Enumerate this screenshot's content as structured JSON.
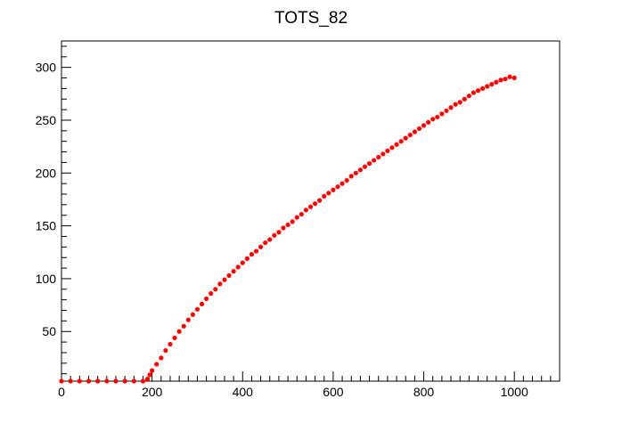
{
  "chart_data": {
    "type": "scatter",
    "title": "TOTS_82",
    "xlabel": "",
    "ylabel": "",
    "xlim": [
      0,
      1100
    ],
    "ylim": [
      3,
      325
    ],
    "x_ticks": [
      0,
      200,
      400,
      600,
      800,
      1000
    ],
    "y_ticks": [
      50,
      100,
      150,
      200,
      250,
      300
    ],
    "x_minor_step": 20,
    "y_minor_step": 10,
    "grid": false,
    "legend": "none",
    "marker_color": "#ff0000",
    "series": [
      {
        "x": [
          0,
          20,
          40,
          60,
          80,
          100,
          120,
          140,
          160,
          180,
          190,
          195,
          200,
          210,
          220,
          230,
          240,
          250,
          260,
          270,
          280,
          290,
          300,
          310,
          320,
          330,
          340,
          350,
          360,
          370,
          380,
          390,
          400,
          410,
          420,
          430,
          440,
          450,
          460,
          470,
          480,
          490,
          500,
          510,
          520,
          530,
          540,
          550,
          560,
          570,
          580,
          590,
          600,
          610,
          620,
          630,
          640,
          650,
          660,
          670,
          680,
          690,
          700,
          710,
          720,
          730,
          740,
          750,
          760,
          770,
          780,
          790,
          800,
          810,
          820,
          830,
          840,
          850,
          860,
          870,
          880,
          890,
          900,
          910,
          920,
          930,
          940,
          950,
          960,
          970,
          980,
          990,
          1000
        ],
        "y": [
          3,
          3,
          3,
          3,
          3,
          3,
          3,
          3,
          3,
          3,
          5,
          9,
          13,
          19,
          25,
          32,
          38,
          44,
          50,
          55,
          61,
          66,
          71,
          76,
          81,
          86,
          90,
          95,
          99,
          103,
          107,
          111,
          115,
          119,
          123,
          126,
          130,
          134,
          137,
          141,
          144,
          148,
          151,
          154,
          158,
          161,
          165,
          168,
          171,
          174,
          178,
          181,
          184,
          187,
          190,
          193,
          197,
          200,
          203,
          206,
          209,
          212,
          215,
          218,
          221,
          224,
          227,
          230,
          233,
          236,
          239,
          242,
          245,
          248,
          251,
          253,
          256,
          259,
          262,
          265,
          267,
          270,
          273,
          276,
          278,
          280,
          282,
          284,
          286,
          288,
          289,
          291,
          290
        ]
      }
    ]
  }
}
